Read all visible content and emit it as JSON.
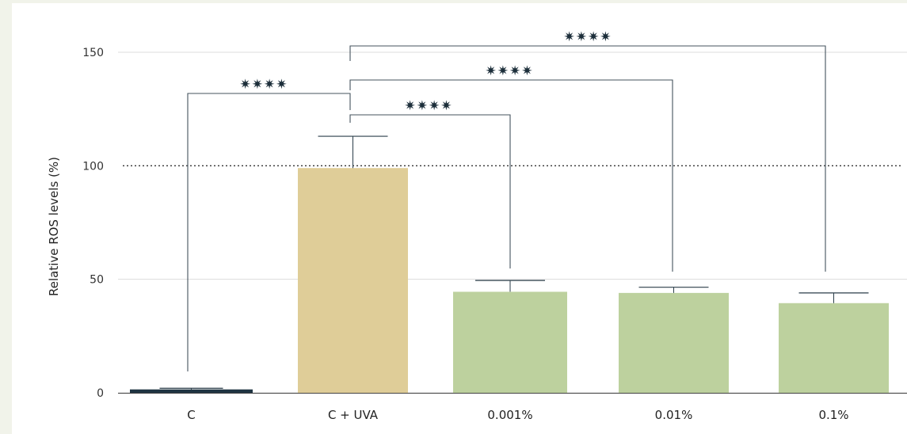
{
  "chart_data": {
    "type": "bar",
    "ylabel": "Relative ROS levels (%)",
    "xlabel": "",
    "ylim": [
      0,
      150
    ],
    "yticks": [
      0,
      50,
      100,
      150
    ],
    "grid": true,
    "reference_line": 100,
    "categories": [
      "C",
      "C + UVA",
      "0.001%",
      "0.01%",
      "0.1%"
    ],
    "values": [
      1.5,
      99,
      44.5,
      44,
      39.5
    ],
    "errors": [
      0.5,
      14,
      5,
      2.5,
      4.5
    ],
    "colors": [
      "#1f3442",
      "#dfcd98",
      "#bdd19e",
      "#bdd19e",
      "#bdd19e"
    ],
    "significance": [
      {
        "from": "C",
        "to": "C + UVA",
        "label": "✷✷✷✷"
      },
      {
        "from": "C + UVA",
        "to": "0.001%",
        "label": "✷✷✷✷"
      },
      {
        "from": "C + UVA",
        "to": "0.01%",
        "label": "✷✷✷✷"
      },
      {
        "from": "C + UVA",
        "to": "0.1%",
        "label": "✷✷✷✷"
      }
    ]
  }
}
